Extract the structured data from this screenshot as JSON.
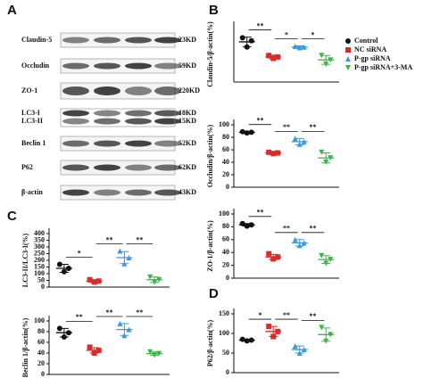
{
  "panels": [
    "A",
    "B",
    "C",
    "D"
  ],
  "blot": {
    "rows": [
      {
        "label": "Claudin-5",
        "size": "23KD"
      },
      {
        "label": "Occludin",
        "size": "59KD"
      },
      {
        "label": "ZO-1",
        "size": "220KD"
      },
      {
        "label": "LC3-I",
        "size": "18KD"
      },
      {
        "label": "LC3-II",
        "size": "15KD"
      },
      {
        "label": "Beclin 1",
        "size": "52KD"
      },
      {
        "label": "P62",
        "size": "62KD"
      },
      {
        "label": "β-actin",
        "size": "43KD"
      }
    ]
  },
  "groups": [
    {
      "name": "Control",
      "color": "#111111"
    },
    {
      "name": "NC siRNA",
      "color": "#d92b2b"
    },
    {
      "name": "P-gp siRNA",
      "color": "#3a9ad9"
    },
    {
      "name": "P-gp siRNA+3-MA",
      "color": "#3bb44a"
    }
  ],
  "chart_data": [
    {
      "type": "dotplot",
      "y_label": "Claudin-5/β-actin(%)",
      "ylim": [
        0,
        150
      ],
      "series": [
        {
          "values": [
            120,
            95,
            112
          ],
          "mean": 109,
          "sd": 13
        },
        {
          "values": [
            72,
            64,
            68
          ],
          "mean": 68,
          "sd": 5
        },
        {
          "values": [
            97,
            93,
            95
          ],
          "mean": 95,
          "sd": 3
        },
        {
          "values": [
            72,
            48,
            60
          ],
          "mean": 60,
          "sd": 12
        }
      ],
      "significance": [
        "**",
        "*",
        "*"
      ]
    },
    {
      "type": "dotplot",
      "y_label": "Occludin/β-actin(%)",
      "ylim": [
        0,
        100
      ],
      "yticks": [
        0,
        20,
        40,
        60,
        80,
        100
      ],
      "series": [
        {
          "values": [
            89,
            87,
            88
          ],
          "mean": 88,
          "sd": 1
        },
        {
          "values": [
            56,
            54,
            55
          ],
          "mean": 55,
          "sd": 2
        },
        {
          "values": [
            78,
            69,
            73
          ],
          "mean": 73,
          "sd": 5
        },
        {
          "values": [
            56,
            40,
            47
          ],
          "mean": 47,
          "sd": 8
        }
      ],
      "significance": [
        "**",
        "**",
        "**"
      ]
    },
    {
      "type": "dotplot",
      "y_label": "LC3-II/LC3-I(%)",
      "ylim": [
        0,
        400
      ],
      "yticks": [
        0,
        50,
        100,
        150,
        200,
        250,
        300,
        350,
        400
      ],
      "series": [
        {
          "values": [
            170,
            115,
            140
          ],
          "mean": 140,
          "sd": 30
        },
        {
          "values": [
            55,
            38,
            45
          ],
          "mean": 45,
          "sd": 10
        },
        {
          "values": [
            270,
            175,
            220
          ],
          "mean": 220,
          "sd": 45
        },
        {
          "values": [
            75,
            35,
            55
          ],
          "mean": 55,
          "sd": 20
        }
      ],
      "significance": [
        "*",
        "**",
        "**"
      ]
    },
    {
      "type": "dotplot",
      "y_label": "ZO-1/β-actin(%)",
      "ylim": [
        0,
        100
      ],
      "yticks": [
        0,
        20,
        40,
        60,
        80,
        100
      ],
      "series": [
        {
          "values": [
            85,
            81,
            83
          ],
          "mean": 83,
          "sd": 2
        },
        {
          "values": [
            38,
            30,
            33
          ],
          "mean": 33,
          "sd": 4
        },
        {
          "values": [
            60,
            51,
            55
          ],
          "mean": 55,
          "sd": 5
        },
        {
          "values": [
            35,
            23,
            29
          ],
          "mean": 29,
          "sd": 6
        }
      ],
      "significance": [
        "**",
        "**",
        "**"
      ]
    },
    {
      "type": "dotplot",
      "y_label": "Beclin 1/β-actin(%)",
      "ylim": [
        0,
        100
      ],
      "yticks": [
        0,
        20,
        40,
        60,
        80,
        100
      ],
      "series": [
        {
          "values": [
            86,
            70,
            78
          ],
          "mean": 78,
          "sd": 8
        },
        {
          "values": [
            51,
            40,
            45
          ],
          "mean": 45,
          "sd": 5
        },
        {
          "values": [
            95,
            73,
            84
          ],
          "mean": 84,
          "sd": 11
        },
        {
          "values": [
            42,
            36,
            39
          ],
          "mean": 39,
          "sd": 3
        }
      ],
      "significance": [
        "**",
        "**",
        "**"
      ]
    },
    {
      "type": "dotplot",
      "y_label": "P62/β-actin(%)",
      "ylim": [
        0,
        150
      ],
      "yticks": [
        0,
        50,
        100,
        150
      ],
      "series": [
        {
          "values": [
            85,
            81,
            83
          ],
          "mean": 83,
          "sd": 2
        },
        {
          "values": [
            118,
            92,
            105
          ],
          "mean": 105,
          "sd": 13
        },
        {
          "values": [
            68,
            50,
            59
          ],
          "mean": 59,
          "sd": 9
        },
        {
          "values": [
            115,
            80,
            97
          ],
          "mean": 97,
          "sd": 17
        }
      ],
      "significance": [
        "*",
        "**",
        "**"
      ]
    }
  ]
}
